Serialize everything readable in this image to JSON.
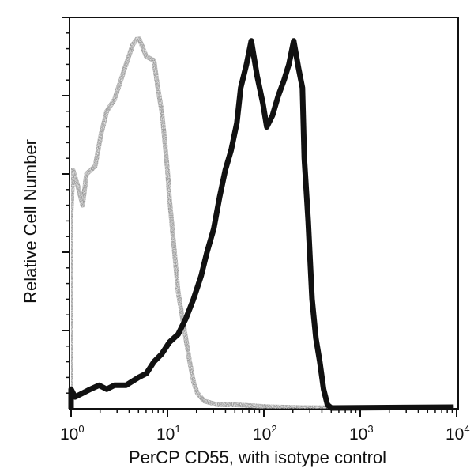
{
  "chart_data": {
    "type": "line",
    "subtype": "flow-cytometry-histogram",
    "title": "",
    "xlabel": "PerCP CD55, with isotype control",
    "ylabel": "Relative Cell Number",
    "x_scale": "log10",
    "xlim": [
      1,
      10000
    ],
    "ylim": [
      0,
      100
    ],
    "x_tick_labels": [
      {
        "base": "10",
        "exp": "0"
      },
      {
        "base": "10",
        "exp": "1"
      },
      {
        "base": "10",
        "exp": "2"
      },
      {
        "base": "10",
        "exp": "3"
      },
      {
        "base": "10",
        "exp": "4"
      }
    ],
    "y_tick_labels": [],
    "grid": false,
    "legend": null,
    "series": [
      {
        "name": "Isotype control",
        "color": "#9a9a9a",
        "style": "stippled gray",
        "points_log10x_y": [
          [
            0.0,
            0
          ],
          [
            0.0,
            50
          ],
          [
            0.02,
            61
          ],
          [
            0.08,
            56
          ],
          [
            0.12,
            52
          ],
          [
            0.16,
            60
          ],
          [
            0.25,
            62
          ],
          [
            0.31,
            70
          ],
          [
            0.37,
            76
          ],
          [
            0.45,
            79
          ],
          [
            0.49,
            82
          ],
          [
            0.53,
            85
          ],
          [
            0.57,
            88
          ],
          [
            0.64,
            93
          ],
          [
            0.7,
            95
          ],
          [
            0.78,
            90
          ],
          [
            0.86,
            89
          ],
          [
            0.9,
            82
          ],
          [
            0.94,
            76
          ],
          [
            0.97,
            69
          ],
          [
            1.0,
            61
          ],
          [
            1.02,
            54
          ],
          [
            1.05,
            46
          ],
          [
            1.08,
            38
          ],
          [
            1.11,
            30
          ],
          [
            1.15,
            24
          ],
          [
            1.19,
            18
          ],
          [
            1.23,
            12
          ],
          [
            1.27,
            7
          ],
          [
            1.31,
            4
          ],
          [
            1.38,
            2
          ],
          [
            1.52,
            1
          ],
          [
            1.72,
            1
          ],
          [
            2.05,
            0.5
          ],
          [
            2.38,
            0.3
          ],
          [
            2.95,
            0.2
          ],
          [
            3.97,
            0.2
          ]
        ]
      },
      {
        "name": "PerCP CD55",
        "color": "#111111",
        "style": "solid black",
        "points_log10x_y": [
          [
            0.0,
            0
          ],
          [
            0.0,
            5
          ],
          [
            0.04,
            3
          ],
          [
            0.12,
            4
          ],
          [
            0.2,
            5
          ],
          [
            0.29,
            6
          ],
          [
            0.37,
            5
          ],
          [
            0.45,
            6
          ],
          [
            0.57,
            6
          ],
          [
            0.7,
            8
          ],
          [
            0.78,
            9
          ],
          [
            0.86,
            12
          ],
          [
            0.94,
            14
          ],
          [
            1.02,
            17
          ],
          [
            1.11,
            19
          ],
          [
            1.19,
            23
          ],
          [
            1.27,
            28
          ],
          [
            1.35,
            34
          ],
          [
            1.41,
            40
          ],
          [
            1.48,
            46
          ],
          [
            1.54,
            54
          ],
          [
            1.6,
            61
          ],
          [
            1.66,
            66
          ],
          [
            1.72,
            73
          ],
          [
            1.76,
            82
          ],
          [
            1.82,
            88
          ],
          [
            1.87,
            94
          ],
          [
            1.93,
            85
          ],
          [
            1.99,
            78
          ],
          [
            2.03,
            72
          ],
          [
            2.09,
            75
          ],
          [
            2.15,
            80
          ],
          [
            2.21,
            84
          ],
          [
            2.26,
            88
          ],
          [
            2.31,
            94
          ],
          [
            2.36,
            87
          ],
          [
            2.4,
            82
          ],
          [
            2.42,
            64
          ],
          [
            2.46,
            48
          ],
          [
            2.5,
            28
          ],
          [
            2.54,
            18
          ],
          [
            2.58,
            12
          ],
          [
            2.62,
            5
          ],
          [
            2.66,
            1
          ],
          [
            2.7,
            0.2
          ],
          [
            3.97,
            0.4
          ]
        ]
      }
    ]
  }
}
